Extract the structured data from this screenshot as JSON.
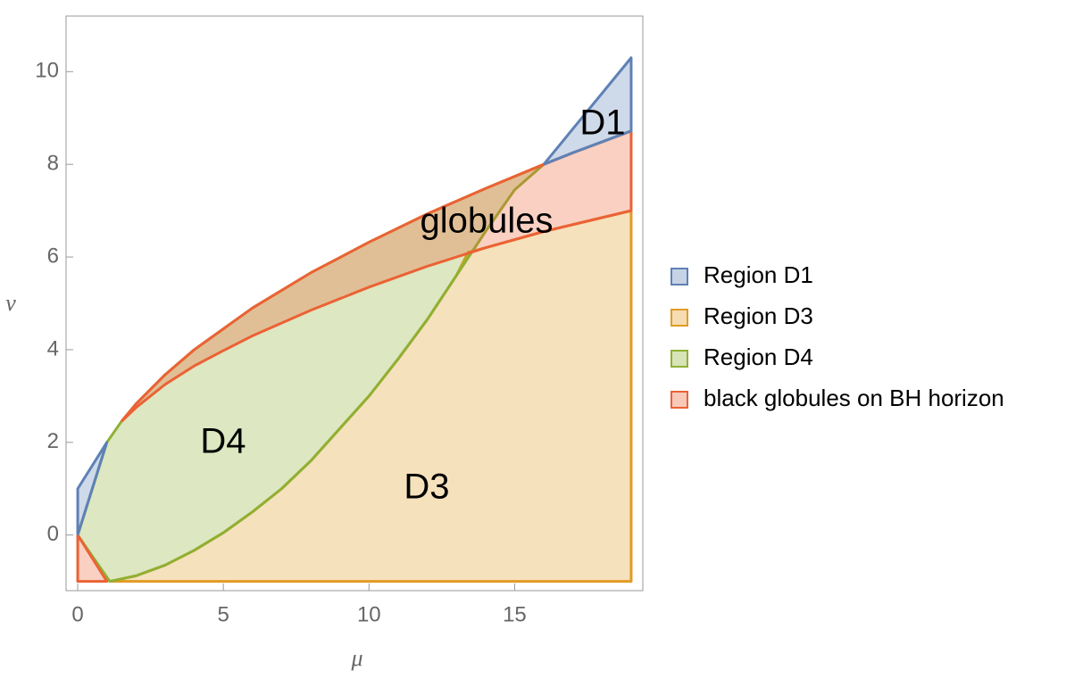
{
  "chart_data": {
    "type": "region",
    "xlabel": "μ",
    "ylabel": "ν",
    "xlim": [
      -0.4,
      19.4
    ],
    "ylim": [
      -1.2,
      11.2
    ],
    "xticks": [
      0,
      5,
      10,
      15
    ],
    "yticks": [
      0,
      2,
      4,
      6,
      8,
      10
    ],
    "annotations": [
      "D1",
      "globules",
      "D4",
      "D3"
    ],
    "series": [
      {
        "name": "Region D1",
        "color": "#5e81b5",
        "x": [
          0,
          0,
          1,
          0,
          null,
          16,
          19,
          19,
          17,
          16
        ],
        "values": [
          0,
          1,
          2,
          0,
          null,
          8,
          10.3,
          8.72,
          8.25,
          8
        ]
      },
      {
        "name": "Region D3",
        "color": "#e19c24",
        "x": [
          1.1,
          19,
          19,
          16,
          14,
          13.4,
          13,
          12,
          11,
          10,
          9,
          8,
          7,
          6,
          5,
          4,
          3,
          2,
          1.1
        ],
        "values": [
          -1,
          -1,
          7,
          6.55,
          6.2,
          6.1,
          5.6,
          4.65,
          3.8,
          3,
          2.3,
          1.6,
          1,
          0.5,
          0.05,
          -0.33,
          -0.65,
          -0.88,
          -1
        ]
      },
      {
        "name": "Region D4",
        "color": "#8fb032",
        "x": [
          0,
          1,
          1.5,
          2,
          3,
          4,
          6,
          8,
          10,
          12,
          14,
          16,
          15,
          14,
          13,
          12,
          11,
          10,
          9,
          8,
          7,
          6,
          5,
          4,
          3,
          2,
          1.1,
          0
        ],
        "values": [
          0,
          2,
          2.45,
          2.83,
          3.46,
          4,
          4.9,
          5.66,
          6.32,
          6.93,
          7.48,
          8,
          7.45,
          6.55,
          5.6,
          4.65,
          3.8,
          3,
          2.3,
          1.6,
          1,
          0.5,
          0.05,
          -0.33,
          -0.65,
          -0.88,
          -1,
          0
        ]
      },
      {
        "name": "black globules on BH horizon",
        "color": "#eb6235",
        "x": [
          0,
          0,
          1,
          0,
          null,
          1.5,
          2,
          3,
          4,
          6,
          8,
          10,
          12,
          14,
          16,
          17,
          19,
          19,
          16,
          14,
          12,
          10,
          8,
          6,
          5,
          4,
          3,
          2,
          1.5
        ],
        "values": [
          0,
          -1,
          -1,
          0,
          null,
          2.45,
          2.83,
          3.46,
          4,
          4.9,
          5.66,
          6.32,
          6.93,
          7.48,
          8,
          8.25,
          8.72,
          7,
          6.55,
          6.2,
          5.8,
          5.35,
          4.85,
          4.3,
          3.98,
          3.65,
          3.25,
          2.75,
          2.45
        ]
      }
    ]
  }
}
